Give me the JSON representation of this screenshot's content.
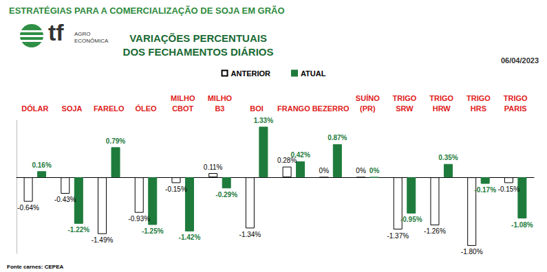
{
  "chart_data": {
    "type": "bar",
    "subtitle": "ESTRATÉGIAS PARA A COMERCIALIZAÇÃO DE SOJA EM GRÃO",
    "title": "VARIAÇÕES PERCENTUAIS\nDOS FECHAMENTOS DIÁRIOS",
    "annotations": {
      "date": "06/04/2023",
      "source": "Fonte carnes: CEPEA",
      "logo": "tf",
      "logo_caption": "AGRO\nECONÔMICA"
    },
    "categories": [
      "DÓLAR",
      "SOJA",
      "FARELO",
      "ÓLEO",
      "MILHO CBOT",
      "MILHO B3",
      "BOI",
      "FRANGO",
      "BEZERRO",
      "SUÍNO (PR)",
      "TRIGO SRW",
      "TRIGO HRW",
      "TRIGO HRS",
      "TRIGO PARIS"
    ],
    "series": [
      {
        "name": "ANTERIOR",
        "color": "#ffffff",
        "values": [
          -0.64,
          -0.43,
          -1.49,
          -0.93,
          -0.15,
          0.11,
          -1.34,
          0.28,
          0,
          0,
          -1.37,
          -1.26,
          -1.8,
          -0.15
        ],
        "value_labels": [
          "-0.64%",
          "-0.43%",
          "-1.49%",
          "-0.93%",
          "-0.15%",
          "0.11%",
          "-1.34%",
          "0.28%",
          "0%",
          "0%",
          "-1.37%",
          "-1.26%",
          "-1.80%",
          "-0.15%"
        ]
      },
      {
        "name": "ATUAL",
        "color": "#1e7b3c",
        "values": [
          0.16,
          -1.22,
          0.79,
          -1.25,
          -1.42,
          -0.29,
          1.33,
          0.42,
          0.87,
          0,
          -0.95,
          0.35,
          -0.17,
          -1.08
        ],
        "value_labels": [
          "0.16%",
          "-1.22%",
          "0.79%",
          "-1.25%",
          "-1.42%",
          "-0.29%",
          "1.33%",
          "0.42%",
          "0.87%",
          "0%",
          "-0.95%",
          "0.35%",
          "-0.17%",
          "-1.08%"
        ]
      }
    ],
    "ylim": [
      -2,
      1.5
    ],
    "grid": false,
    "legend": "top",
    "data_labels": true,
    "tick_labels": false
  }
}
